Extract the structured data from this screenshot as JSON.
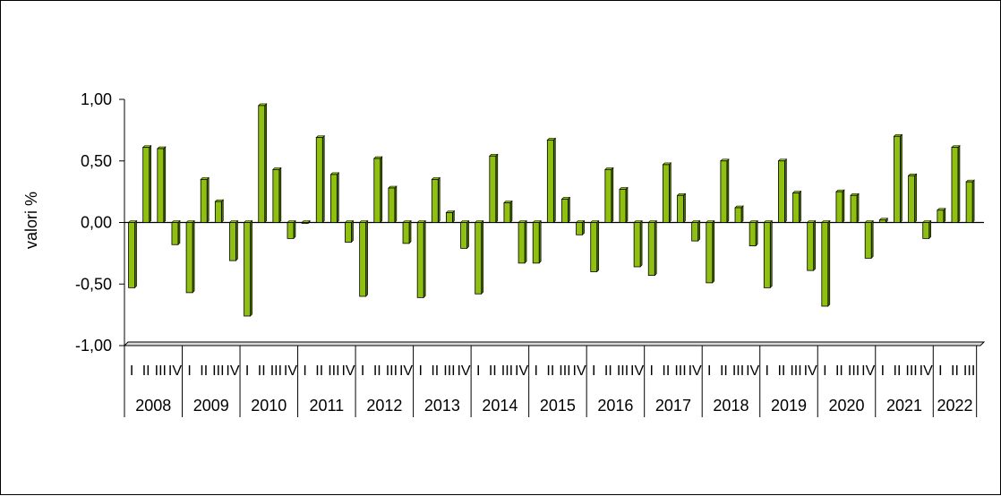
{
  "chart_data": {
    "type": "bar",
    "ylabel": "valori %",
    "ylim": [
      -1.0,
      1.0
    ],
    "y_ticks": [
      "1,00",
      "0,50",
      "0,00",
      "-0,50",
      "-1,00"
    ],
    "years": [
      "2008",
      "2009",
      "2010",
      "2011",
      "2012",
      "2013",
      "2014",
      "2015",
      "2016",
      "2017",
      "2018",
      "2019",
      "2020",
      "2021",
      "2022"
    ],
    "quarter_labels": [
      "I",
      "II",
      "III",
      "IV"
    ],
    "series": [
      {
        "values": [
          -0.53,
          0.61,
          0.6,
          -0.18,
          -0.57,
          0.35,
          0.17,
          -0.31,
          -0.76,
          0.95,
          0.43,
          -0.13,
          0.0,
          0.69,
          0.39,
          -0.16,
          -0.6,
          0.52,
          0.28,
          -0.17,
          -0.61,
          0.35,
          0.08,
          -0.21,
          -0.58,
          0.54,
          0.16,
          -0.33,
          -0.33,
          0.67,
          0.19,
          -0.1,
          -0.4,
          0.43,
          0.27,
          -0.36,
          -0.43,
          0.47,
          0.22,
          -0.15,
          -0.49,
          0.5,
          0.12,
          -0.19,
          -0.53,
          0.5,
          0.24,
          -0.39,
          -0.68,
          0.25,
          0.22,
          -0.29,
          0.02,
          0.7,
          0.38,
          -0.13,
          0.1,
          0.61,
          0.33
        ]
      }
    ],
    "bar_color": "#8fbf10",
    "bar_shade": "#4a6a00",
    "grid": false
  }
}
